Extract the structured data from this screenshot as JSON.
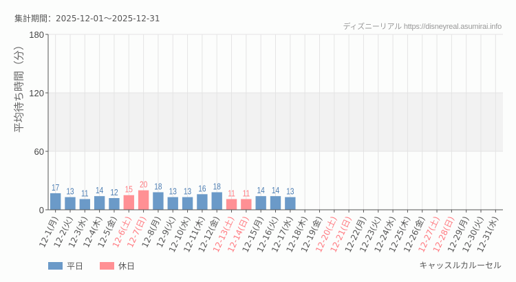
{
  "header": {
    "period_label": "集計期間：2025-12-01〜2025-12-31",
    "credit": "ディズニーリアル https://disneyreal.asumirai.info"
  },
  "legend": {
    "weekday_label": "平日",
    "holiday_label": "休日"
  },
  "footer": {
    "attraction_name": "キャッスルカルーセル"
  },
  "colors": {
    "weekday": "#6b9ac8",
    "holiday": "#ff9094",
    "weekday_text": "#4f7fb3",
    "holiday_text": "#ff7a80",
    "grid": "#e4e4e4",
    "band": "#f2f2f2",
    "axis": "#555555"
  },
  "chart_data": {
    "type": "bar",
    "title": "",
    "xlabel": "",
    "ylabel": "平均待ち時間（分）",
    "ylim": [
      0,
      180
    ],
    "yticks": [
      0,
      60,
      120,
      180
    ],
    "grid": true,
    "shaded_band": [
      60,
      120
    ],
    "legend_position": "bottom-left",
    "categories": [
      "12-1(月)",
      "12-2(火)",
      "12-3(水)",
      "12-4(木)",
      "12-5(金)",
      "12-6(土)",
      "12-7(日)",
      "12-8(月)",
      "12-9(火)",
      "12-10(水)",
      "12-11(木)",
      "12-12(金)",
      "12-13(土)",
      "12-14(日)",
      "12-15(月)",
      "12-16(火)",
      "12-17(水)",
      "12-18(木)",
      "12-19(金)",
      "12-20(土)",
      "12-21(日)",
      "12-22(月)",
      "12-23(火)",
      "12-24(水)",
      "12-25(木)",
      "12-26(金)",
      "12-27(土)",
      "12-28(日)",
      "12-29(月)",
      "12-30(火)",
      "12-31(水)"
    ],
    "day_type": [
      "weekday",
      "weekday",
      "weekday",
      "weekday",
      "weekday",
      "holiday",
      "holiday",
      "weekday",
      "weekday",
      "weekday",
      "weekday",
      "weekday",
      "holiday",
      "holiday",
      "weekday",
      "weekday",
      "weekday",
      "weekday",
      "weekday",
      "holiday",
      "holiday",
      "weekday",
      "weekday",
      "weekday",
      "weekday",
      "weekday",
      "holiday",
      "holiday",
      "weekday",
      "weekday",
      "weekday"
    ],
    "values": [
      17,
      13,
      11,
      14,
      12,
      15,
      20,
      18,
      13,
      13,
      16,
      18,
      11,
      11,
      14,
      14,
      13,
      null,
      null,
      null,
      null,
      null,
      null,
      null,
      null,
      null,
      null,
      null,
      null,
      null,
      null
    ],
    "series": [
      {
        "name": "平日",
        "values": [
          17,
          13,
          11,
          14,
          12,
          null,
          null,
          18,
          13,
          13,
          16,
          18,
          null,
          null,
          14,
          14,
          13,
          null,
          null,
          null,
          null,
          null,
          null,
          null,
          null,
          null,
          null,
          null,
          null,
          null,
          null
        ]
      },
      {
        "name": "休日",
        "values": [
          null,
          null,
          null,
          null,
          null,
          15,
          20,
          null,
          null,
          null,
          null,
          null,
          11,
          11,
          null,
          null,
          null,
          null,
          null,
          null,
          null,
          null,
          null,
          null,
          null,
          null,
          null,
          null,
          null,
          null,
          null
        ]
      }
    ]
  }
}
